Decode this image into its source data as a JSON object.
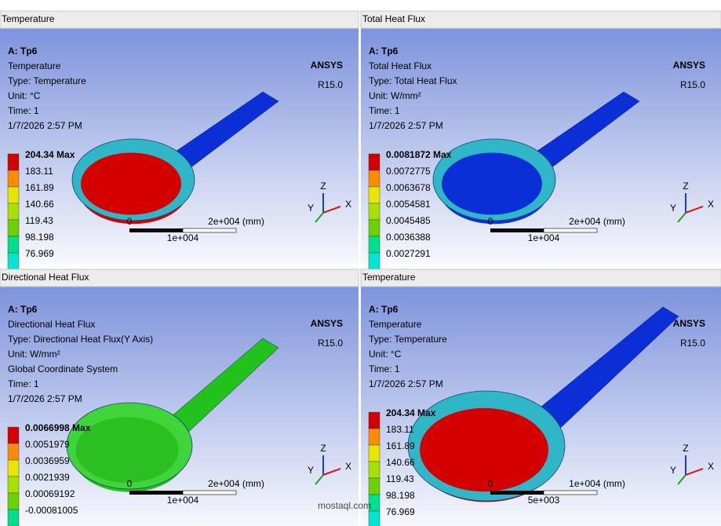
{
  "brand": {
    "name": "ANSYS",
    "version": "R15.0"
  },
  "axes": [
    "X",
    "Y",
    "Z"
  ],
  "watermark": "mostaql.com",
  "panels": [
    {
      "title": "Temperature",
      "lines": [
        "A: Tp6",
        "Temperature",
        "Type: Temperature",
        "Unit: °C",
        "Time: 1",
        "1/7/2026 2:57 PM"
      ],
      "legend": [
        "204.34 Max",
        "183.11",
        "161.89",
        "140.66",
        "119.43",
        "98.198",
        "76.969"
      ],
      "scale": [
        "0",
        "2e+004 (mm)",
        "1e+004"
      ]
    },
    {
      "title": "Total Heat Flux",
      "lines": [
        "A: Tp6",
        "Total Heat Flux",
        "Type: Total Heat Flux",
        "Unit: W/mm²",
        "Time: 1",
        "1/7/2026 2:57 PM"
      ],
      "legend": [
        "0.0081872 Max",
        "0.0072775",
        "0.0063678",
        "0.0054581",
        "0.0045485",
        "0.0036388",
        "0.0027291"
      ],
      "scale": [
        "0",
        "2e+004 (mm)",
        "1e+004"
      ]
    },
    {
      "title": "Directional Heat Flux",
      "lines": [
        "A: Tp6",
        "Directional Heat Flux",
        "Type: Directional Heat Flux(Y Axis)",
        "Unit: W/mm²",
        "Global Coordinate System",
        "Time: 1",
        "1/7/2026 2:57 PM"
      ],
      "legend": [
        "0.0066998 Max",
        "0.0051979",
        "0.0036959",
        "0.0021939",
        "0.00069192",
        "-0.00081005"
      ],
      "scale": [
        "0",
        "2e+004 (mm)",
        "1e+004"
      ]
    },
    {
      "title": "Temperature",
      "lines": [
        "A: Tp6",
        "Temperature",
        "Type: Temperature",
        "Unit: °C",
        "Time: 1",
        "1/7/2026 2:57 PM"
      ],
      "legend": [
        "204.34 Max",
        "183.11",
        "161.89",
        "140.66",
        "119.43",
        "98.198",
        "76.969"
      ],
      "scale": [
        "0",
        "1e+004 (mm)",
        "5e+003"
      ]
    }
  ]
}
